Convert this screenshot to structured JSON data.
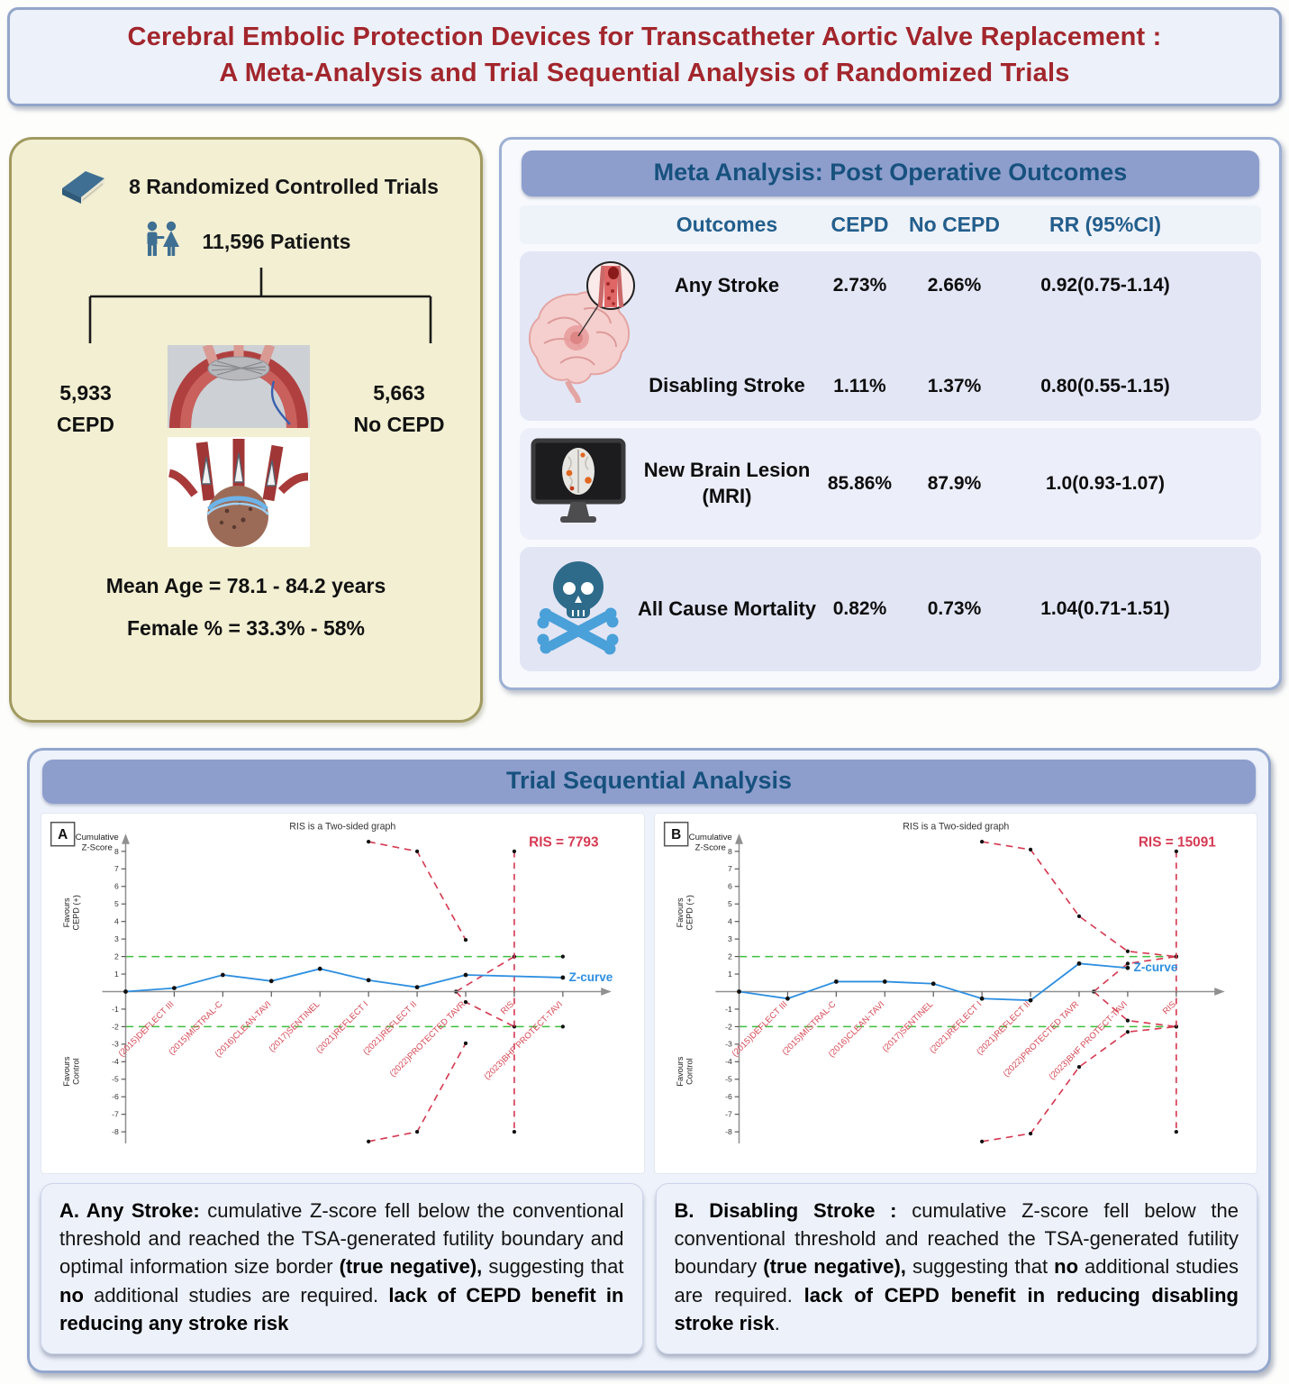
{
  "title": {
    "line1": "Cerebral Embolic Protection Devices for Transcatheter Aortic Valve Replacement :",
    "line2": "A Meta-Analysis and Trial Sequential Analysis of Randomized Trials"
  },
  "study": {
    "trials_label": "8 Randomized Controlled Trials",
    "patients_label": "11,596 Patients",
    "left_arm": {
      "count": "5,933",
      "label": "CEPD"
    },
    "right_arm": {
      "count": "5,663",
      "label": "No CEPD"
    },
    "mean_age": "Mean Age = 78.1 - 84.2 years",
    "female_pct": "Female % = 33.3% - 58%"
  },
  "meta": {
    "banner": "Meta Analysis: Post Operative Outcomes",
    "columns": [
      "Outcomes",
      "CEPD",
      "No CEPD",
      "RR (95%CI)"
    ],
    "rows": [
      {
        "outcome": "Any Stroke",
        "cepd": "2.73%",
        "no_cepd": "2.66%",
        "rr": "0.92(0.75-1.14)"
      },
      {
        "outcome": "Disabling Stroke",
        "cepd": "1.11%",
        "no_cepd": "1.37%",
        "rr": "0.80(0.55-1.15)"
      },
      {
        "outcome_line1": "New Brain Lesion",
        "outcome_line2": "(MRI)",
        "cepd": "85.86%",
        "no_cepd": "87.9%",
        "rr": "1.0(0.93-1.07)"
      },
      {
        "outcome": "All Cause Mortality",
        "cepd": "0.82%",
        "no_cepd": "0.73%",
        "rr": "1.04(0.71-1.51)"
      }
    ]
  },
  "tsa": {
    "banner": "Trial Sequential Analysis",
    "descriptions": {
      "a": {
        "segments": [
          {
            "text": "A. Any Stroke:",
            "bold": true
          },
          {
            "text": " cumulative Z-score fell below the conventional threshold and reached the TSA-generated futility boundary and optimal information size border ",
            "bold": false
          },
          {
            "text": "(true negative),",
            "bold": true
          },
          {
            "text": " suggesting that ",
            "bold": false
          },
          {
            "text": "no",
            "bold": true
          },
          {
            "text": " additional studies are required. ",
            "bold": false
          },
          {
            "text": "lack of CEPD benefit in reducing any stroke risk",
            "bold": true
          }
        ]
      },
      "b": {
        "segments": [
          {
            "text": "B. Disabling Stroke :",
            "bold": true
          },
          {
            "text": " cumulative Z-score fell below the conventional threshold and reached the TSA-generated futility boundary ",
            "bold": false
          },
          {
            "text": "(true negative),",
            "bold": true
          },
          {
            "text": " suggesting that ",
            "bold": false
          },
          {
            "text": "no",
            "bold": true
          },
          {
            "text": " additional studies are required. ",
            "bold": false
          },
          {
            "text": "lack of CEPD benefit in reducing disabling stroke risk",
            "bold": true
          },
          {
            "text": ".",
            "bold": false
          }
        ]
      }
    }
  },
  "colors": {
    "title_red": "#a2262c",
    "banner_blue": "#8d9ecd",
    "banner_text": "#17517e",
    "header_text": "#235e8c",
    "boundary_red": "#d63a52",
    "trial_label_red": "#d64855",
    "z_curve_blue": "#2e8fe0",
    "threshold_green": "#3dbf3d",
    "icon_steel_blue": "#3f6f92",
    "bone_blue": "#4aa0d8"
  },
  "chart_data": [
    {
      "type": "line",
      "panel_label": "A",
      "title": "RIS is a Two-sided graph",
      "ylabel_line1": "Cumulative",
      "ylabel_line2": "Z-Score",
      "favours_top_line1": "Favours",
      "favours_top_line2": "CEPD (+)",
      "favours_bottom_line1": "Favours",
      "favours_bottom_line2": "Control",
      "ris_label": "RIS = 7793",
      "ris_x": 8,
      "zcurve_label": "Z-curve",
      "sig_threshold": 2,
      "ylim": [
        -9,
        9
      ],
      "y_ticks": [
        8,
        7,
        6,
        5,
        4,
        3,
        2,
        1,
        -1,
        -2,
        -3,
        -4,
        -5,
        -6,
        -7,
        -8
      ],
      "x_ticks": [
        {
          "x": 1,
          "label": "(2015)DEFLECT III"
        },
        {
          "x": 2,
          "label": "(2015)MISTRAL-C"
        },
        {
          "x": 3,
          "label": "(2016)CLEAN-TAVI"
        },
        {
          "x": 4,
          "label": "(2017)SENTINEL"
        },
        {
          "x": 5,
          "label": "(2021)REFLECT I"
        },
        {
          "x": 6,
          "label": "(2021)REFLECT II"
        },
        {
          "x": 7,
          "label": "(2022)PROTECTED TAVR"
        },
        {
          "x": 8,
          "label": "RIS"
        },
        {
          "x": 9,
          "label": "(2023)BHF PROTECT-TAVI"
        }
      ],
      "z_curve": [
        [
          0,
          0
        ],
        [
          1,
          0.2
        ],
        [
          2,
          0.95
        ],
        [
          3,
          0.6
        ],
        [
          4,
          1.3
        ],
        [
          5,
          0.65
        ],
        [
          6,
          0.25
        ],
        [
          7,
          0.95
        ],
        [
          9,
          0.8
        ]
      ],
      "upper_boundary": [
        [
          5,
          8.55
        ],
        [
          6,
          8.0
        ],
        [
          7,
          2.95
        ]
      ],
      "lower_boundary": [
        [
          5,
          -8.55
        ],
        [
          6,
          -8.0
        ],
        [
          7,
          -2.95
        ]
      ],
      "futility_upper": [
        [
          6.8,
          0
        ],
        [
          8,
          2
        ]
      ],
      "futility_lower": [
        [
          6.8,
          0
        ],
        [
          7,
          -0.6
        ],
        [
          8,
          -2
        ]
      ]
    },
    {
      "type": "line",
      "panel_label": "B",
      "title": "RIS is a Two-sided graph",
      "ylabel_line1": "Cumulative",
      "ylabel_line2": "Z-Score",
      "favours_top_line1": "Favours",
      "favours_top_line2": "CEPD (+)",
      "favours_bottom_line1": "Favours",
      "favours_bottom_line2": "Control",
      "ris_label": "RIS = 15091",
      "ris_x": 9,
      "zcurve_label": "Z-curve",
      "sig_threshold": 2,
      "ylim": [
        -9,
        9
      ],
      "y_ticks": [
        8,
        7,
        6,
        5,
        4,
        3,
        2,
        1,
        -1,
        -2,
        -3,
        -4,
        -5,
        -6,
        -7,
        -8
      ],
      "x_ticks": [
        {
          "x": 1,
          "label": "(2015)DEFLECT III"
        },
        {
          "x": 2,
          "label": "(2015)MISTRAL-C"
        },
        {
          "x": 3,
          "label": "(2016)CLEAN-TAVI"
        },
        {
          "x": 4,
          "label": "(2017)SENTINEL"
        },
        {
          "x": 5,
          "label": "(2021)REFLECT I"
        },
        {
          "x": 6,
          "label": "(2021)REFLECT II"
        },
        {
          "x": 7,
          "label": "(2022)PROTECTED TAVR"
        },
        {
          "x": 8,
          "label": "(2023)BHF PROTECT-TAVI"
        },
        {
          "x": 9,
          "label": "RIS"
        }
      ],
      "z_curve": [
        [
          0,
          0
        ],
        [
          1,
          -0.4
        ],
        [
          2,
          0.57
        ],
        [
          3,
          0.57
        ],
        [
          4,
          0.45
        ],
        [
          5,
          -0.4
        ],
        [
          6,
          -0.5
        ],
        [
          7,
          1.6
        ],
        [
          8,
          1.35
        ]
      ],
      "upper_boundary": [
        [
          5,
          8.55
        ],
        [
          6,
          8.1
        ],
        [
          7,
          4.3
        ],
        [
          8,
          2.3
        ],
        [
          9,
          2.0
        ]
      ],
      "lower_boundary": [
        [
          5,
          -8.55
        ],
        [
          6,
          -8.1
        ],
        [
          7,
          -4.3
        ],
        [
          8,
          -2.3
        ],
        [
          9,
          -2.0
        ]
      ],
      "futility_upper": [
        [
          7.3,
          0
        ],
        [
          8,
          1.6
        ],
        [
          9,
          2.0
        ]
      ],
      "futility_lower": [
        [
          7.3,
          0
        ],
        [
          8,
          -1.65
        ],
        [
          9,
          -2.0
        ]
      ]
    }
  ]
}
